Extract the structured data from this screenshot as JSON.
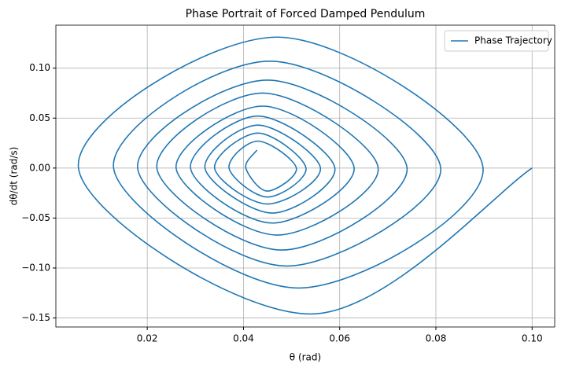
{
  "chart_data": {
    "type": "line",
    "title": "Phase Portrait of Forced Damped Pendulum",
    "xlabel": "θ (rad)",
    "ylabel": "dθ/dt (rad/s)",
    "series": [
      {
        "name": "Phase Trajectory",
        "color": "#1f77b4",
        "x": [
          0.1,
          0.054,
          0.0057,
          0.047,
          0.0898,
          0.0515,
          0.013,
          0.0455,
          0.081,
          0.049,
          0.018,
          0.045,
          0.074,
          0.048,
          0.022,
          0.044,
          0.068,
          0.047,
          0.026,
          0.044,
          0.063,
          0.046,
          0.029,
          0.043,
          0.059,
          0.046,
          0.032,
          0.043,
          0.056,
          0.045,
          0.034,
          0.043,
          0.053,
          0.045,
          0.037,
          0.043,
          0.051,
          0.045,
          0.0405,
          0.0428
        ],
        "values": [
          0,
          -0.146,
          0,
          0.131,
          0,
          -0.12,
          0,
          0.107,
          0,
          -0.098,
          0,
          0.088,
          0,
          -0.082,
          0,
          0.075,
          0,
          -0.067,
          0,
          0.062,
          0,
          -0.055,
          0,
          0.052,
          0,
          -0.045,
          0,
          0.043,
          0,
          -0.036,
          0,
          0.035,
          0,
          -0.029,
          0,
          0.027,
          0,
          -0.023,
          0,
          0.018
        ]
      }
    ],
    "xlim": [
      0.001,
      0.1047
    ],
    "ylim": [
      -0.159,
      0.143
    ],
    "xticks": [
      0.02,
      0.04,
      0.06,
      0.08,
      {
        "value": 0.1,
        "label": "0.10"
      }
    ],
    "yticks": [
      {
        "value": -0.15,
        "label": "−0.15"
      },
      {
        "value": -0.1,
        "label": "−0.10"
      },
      {
        "value": -0.05,
        "label": "−0.05"
      },
      {
        "value": 0,
        "label": "0.00"
      },
      0.05,
      {
        "value": 0.1,
        "label": "0.10"
      }
    ],
    "grid": true,
    "legend": "upper right"
  }
}
